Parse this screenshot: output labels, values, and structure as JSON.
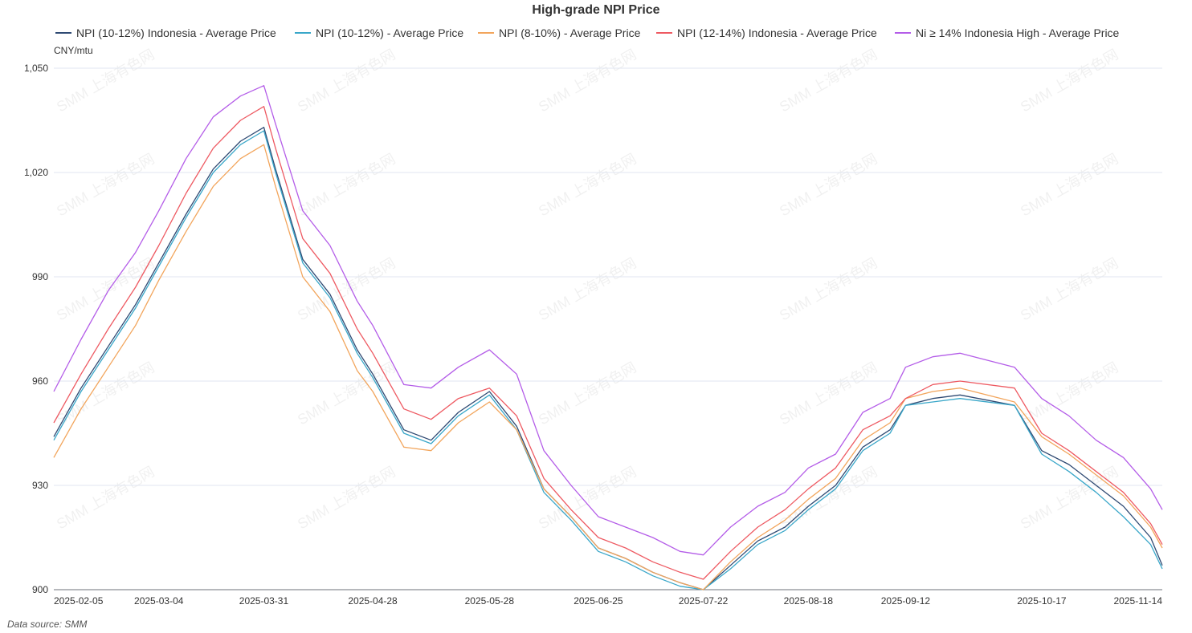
{
  "chart_data": {
    "type": "line",
    "title": "High-grade NPI Price",
    "unit": "CNY/mtu",
    "source": "Data source:  SMM",
    "watermark": "SMM 上海有色网",
    "ylim": [
      900,
      1050
    ],
    "yticks": [
      900,
      930,
      960,
      990,
      1020,
      1050
    ],
    "ytick_labels": [
      "900",
      "930",
      "960",
      "990",
      "1,020",
      "1,050"
    ],
    "x_start": "2025-02-05",
    "x_end": "2025-11-17",
    "xticks": [
      "2025-02-05",
      "2025-03-04",
      "2025-03-31",
      "2025-04-28",
      "2025-05-28",
      "2025-06-25",
      "2025-07-22",
      "2025-08-18",
      "2025-09-12",
      "2025-10-17",
      "2025-11-14"
    ],
    "grid": "horizontal",
    "legend": "top",
    "x": [
      "2025-02-05",
      "2025-02-12",
      "2025-02-19",
      "2025-02-26",
      "2025-03-04",
      "2025-03-11",
      "2025-03-18",
      "2025-03-25",
      "2025-03-31",
      "2025-04-03",
      "2025-04-10",
      "2025-04-17",
      "2025-04-24",
      "2025-04-28",
      "2025-05-06",
      "2025-05-13",
      "2025-05-20",
      "2025-05-28",
      "2025-06-04",
      "2025-06-11",
      "2025-06-18",
      "2025-06-25",
      "2025-07-02",
      "2025-07-09",
      "2025-07-16",
      "2025-07-22",
      "2025-07-29",
      "2025-08-05",
      "2025-08-12",
      "2025-08-18",
      "2025-08-25",
      "2025-09-01",
      "2025-09-08",
      "2025-09-12",
      "2025-09-19",
      "2025-09-26",
      "2025-10-10",
      "2025-10-17",
      "2025-10-24",
      "2025-10-31",
      "2025-11-07",
      "2025-11-14",
      "2025-11-17"
    ],
    "series": [
      {
        "name": "NPI (10-12%) Indonesia - Average Price",
        "color": "#2f4a73",
        "values": [
          944,
          958,
          970,
          982,
          994,
          1008,
          1021,
          1029,
          1033,
          1021,
          995,
          985,
          969,
          962,
          946,
          943,
          951,
          957,
          947,
          929,
          921,
          912,
          909,
          905,
          902,
          900,
          907,
          914,
          918,
          924,
          930,
          941,
          946,
          953,
          955,
          956,
          953,
          940,
          936,
          930,
          924,
          915,
          907
        ]
      },
      {
        "name": "NPI (10-12%) - Average Price",
        "color": "#3aa7c9",
        "values": [
          943,
          957,
          969,
          981,
          993,
          1007,
          1020,
          1028,
          1032,
          1020,
          994,
          984,
          968,
          961,
          945,
          942,
          950,
          956,
          946,
          928,
          920,
          911,
          908,
          904,
          901,
          900,
          906,
          913,
          917,
          923,
          929,
          940,
          945,
          953,
          954,
          955,
          953,
          939,
          934,
          928,
          921,
          913,
          906
        ]
      },
      {
        "name": "NPI (8-10%) - Average Price",
        "color": "#f2a55c",
        "values": [
          938,
          952,
          964,
          976,
          989,
          1003,
          1016,
          1024,
          1028,
          1016,
          990,
          980,
          963,
          957,
          941,
          940,
          948,
          954,
          946,
          929,
          921,
          912,
          909,
          905,
          902,
          900,
          908,
          915,
          920,
          926,
          932,
          943,
          948,
          955,
          957,
          958,
          954,
          944,
          939,
          933,
          927,
          918,
          912
        ]
      },
      {
        "name": "NPI (12-14%) Indonesia - Average Price",
        "color": "#ee5a62",
        "values": [
          948,
          962,
          975,
          987,
          999,
          1014,
          1027,
          1035,
          1039,
          1027,
          1001,
          991,
          975,
          968,
          952,
          949,
          955,
          958,
          950,
          932,
          923,
          915,
          912,
          908,
          905,
          903,
          911,
          918,
          923,
          929,
          935,
          946,
          950,
          955,
          959,
          960,
          958,
          945,
          940,
          934,
          928,
          919,
          913
        ]
      },
      {
        "name": "Ni ≥ 14% Indonesia High - Average Price",
        "color": "#b45de8",
        "values": [
          957,
          972,
          986,
          997,
          1009,
          1024,
          1036,
          1042,
          1045,
          1034,
          1009,
          999,
          983,
          976,
          959,
          958,
          964,
          969,
          962,
          940,
          930,
          921,
          918,
          915,
          911,
          910,
          918,
          924,
          928,
          935,
          939,
          951,
          955,
          964,
          967,
          968,
          964,
          955,
          950,
          943,
          938,
          929,
          923
        ]
      }
    ]
  }
}
